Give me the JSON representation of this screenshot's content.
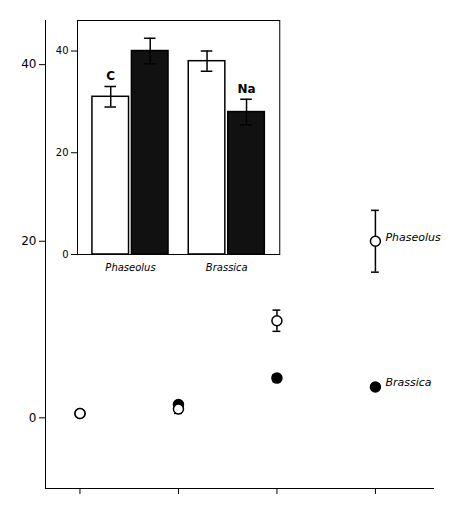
{
  "chart_data": [
    {
      "type": "scatter",
      "x": [
        0,
        1,
        2,
        3
      ],
      "xlim": [
        -0.35,
        3.6
      ],
      "xticks": [
        0,
        1,
        2,
        3
      ],
      "ylim": [
        -8,
        45
      ],
      "yticks": [
        0,
        20,
        40
      ],
      "tick_labels": "y",
      "series": [
        {
          "name": "Brassica",
          "color": "#000000",
          "marker": "circle",
          "values": [
            0.5,
            1.5,
            4.5,
            3.5
          ],
          "yerr": [
            0.2,
            0.3,
            0.4,
            0.3
          ]
        },
        {
          "name": "Phaseolus",
          "color": "#ffffff",
          "marker": "circle",
          "values": [
            0.5,
            1.0,
            11,
            20
          ],
          "yerr": [
            0.3,
            0.5,
            1.2,
            3.5
          ]
        }
      ]
    },
    {
      "type": "bar",
      "categories": [
        "Phaseolus",
        "Brassica"
      ],
      "ylim": [
        0,
        46
      ],
      "yticks": [
        0,
        20,
        40
      ],
      "series": [
        {
          "name": "C",
          "color": "#ffffff",
          "values": [
            31,
            38
          ],
          "yerr": [
            2.0,
            2.0
          ]
        },
        {
          "name": "Na",
          "color": "#111111",
          "values": [
            40,
            28
          ],
          "yerr": [
            2.5,
            2.5
          ]
        }
      ]
    }
  ]
}
